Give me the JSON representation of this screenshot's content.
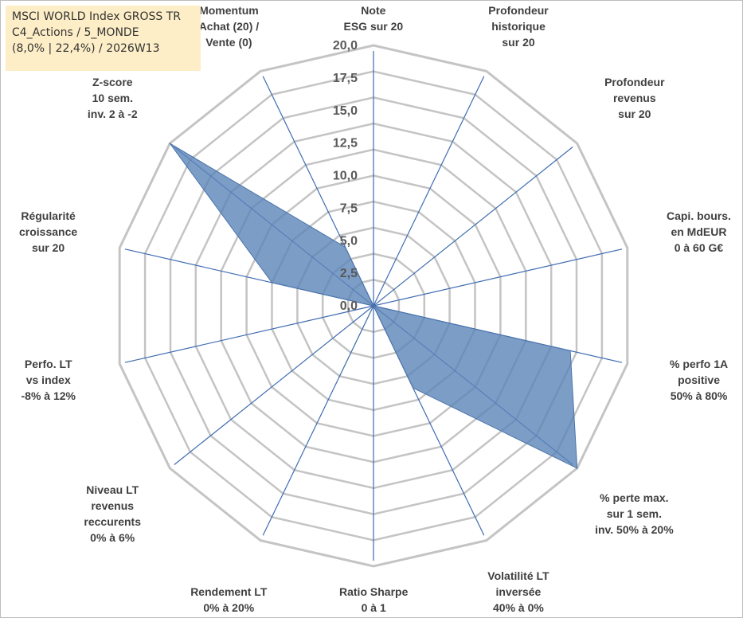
{
  "info": {
    "line1": "MSCI WORLD Index GROSS TR",
    "line2": "C4_Actions / 5_MONDE",
    "line3": "(8,0% | 22,4%) / 2026W13"
  },
  "colors": {
    "fill": "#5b84b8",
    "stroke": "#4a74ab",
    "axis_line": "#3f6cb2",
    "grid": "#c4c4c4",
    "info_bg": "#fdeec7"
  },
  "chart_data": {
    "type": "radar",
    "title": "",
    "rlim": [
      0,
      20
    ],
    "ticks": [
      "0,0",
      "2,5",
      "5,0",
      "7,5",
      "10,0",
      "12,5",
      "15,0",
      "17,5",
      "20,0"
    ],
    "grid": true,
    "axes": [
      "Note\nESG sur 20",
      "Profondeur\nhistorique\nsur 20",
      "Profondeur\nrevenus\nsur 20",
      "Capi. bours.\nen MdEUR\n0 à 60 G€",
      "% perfo 1A\npositive\n50% à 80%",
      "% perte max.\nsur 1 sem.\ninv. 50% à 20%",
      "Volatilité LT\ninversée\n40% à 0%",
      "Ratio Sharpe\n0 à 1",
      "Rendement LT\n0% à 20%",
      "Niveau LT\nrevenus\nreccurents\n0% à 6%",
      "Perfo. LT\nvs index\n-8% à 12%",
      "Régularité\ncroissance\nsur 20",
      "Z-score\n10 sem.\ninv. 2 à -2",
      "Momentum\nAchat (20) /\nVente (0)"
    ],
    "values": [
      0,
      0,
      0,
      0,
      15.5,
      20,
      7,
      0,
      6,
      0,
      0,
      8,
      20,
      5
    ]
  }
}
